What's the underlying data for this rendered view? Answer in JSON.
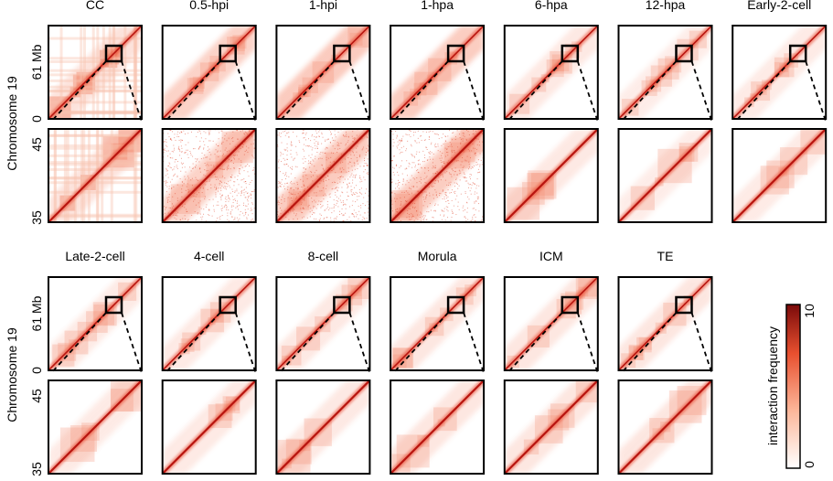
{
  "row1": {
    "titles": [
      "CC",
      "0.5-hpi",
      "1-hpi",
      "1-hpa",
      "6-hpa",
      "12-hpa",
      "Early-2-cell"
    ]
  },
  "row2": {
    "titles": [
      "Late-2-cell",
      "4-cell",
      "8-cell",
      "Morula",
      "ICM",
      "TE"
    ]
  },
  "axis": {
    "label": "Chromosome 19",
    "overview_top": "61 Mb",
    "overview_bottom": "0",
    "zoom_top": "45",
    "zoom_bottom": "35"
  },
  "colorbar": {
    "label": "interaction frequency",
    "max": "10",
    "min": "0"
  }
}
